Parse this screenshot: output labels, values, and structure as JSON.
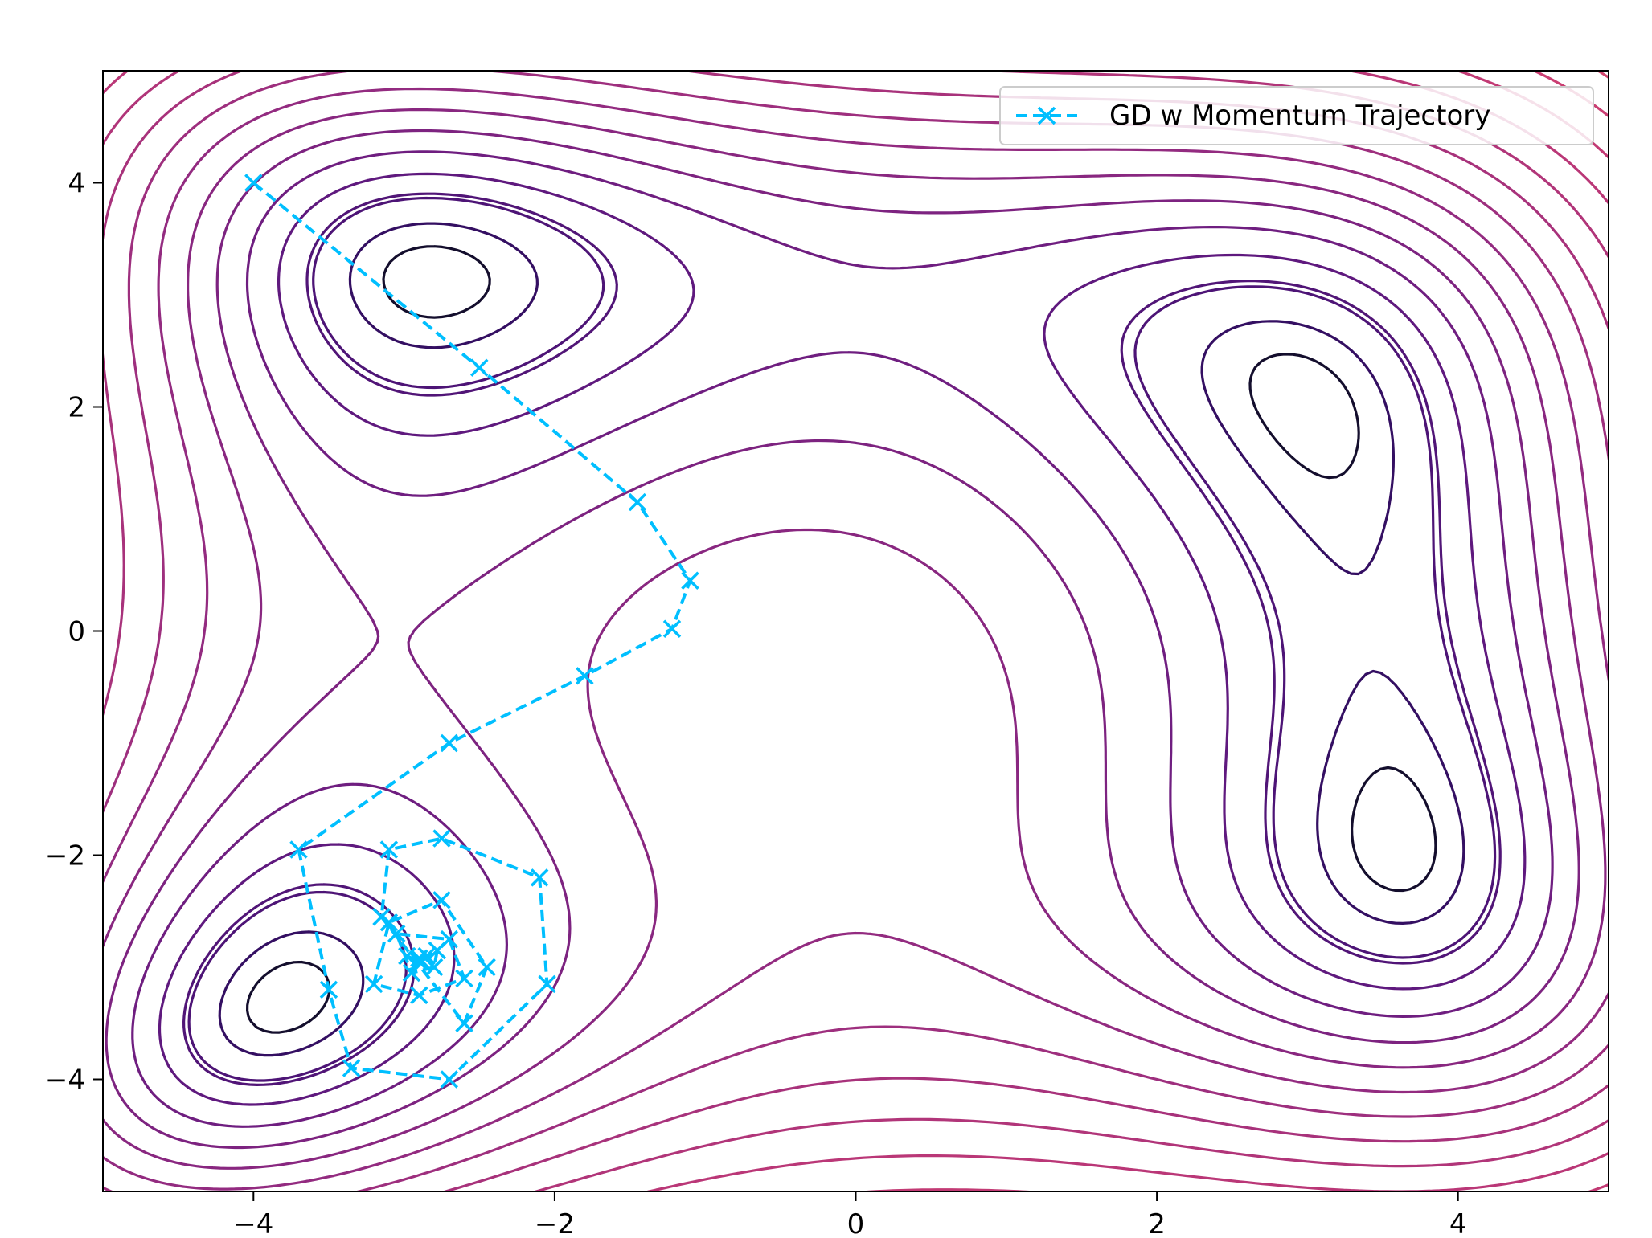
{
  "chart_data": {
    "type": "contour",
    "title": "",
    "xlabel": "",
    "ylabel": "",
    "xlim": [
      -5,
      5
    ],
    "ylim": [
      -5,
      5
    ],
    "xticks": [
      -4,
      -2,
      0,
      2,
      4
    ],
    "yticks": [
      -4,
      -2,
      0,
      2,
      4
    ],
    "xtick_labels": [
      "−4",
      "−2",
      "0",
      "2",
      "4"
    ],
    "ytick_labels": [
      "−4",
      "−2",
      "0",
      "2",
      "4"
    ],
    "grid": false,
    "legend_position": "upper right",
    "contour": {
      "function": "Himmelblau-like surface",
      "colormap": "magma (dark inner levels to orange outer levels)",
      "minima_shown": [
        [
          -2.9,
          2.75
        ],
        [
          2.75,
          2.75
        ],
        [
          -2.9,
          -2.9
        ],
        [
          2.75,
          -2.9
        ]
      ],
      "center_peak": [
        0.15,
        0.15
      ]
    },
    "series": [
      {
        "name": "GD w Momentum Trajectory",
        "color": "#00bfff",
        "linestyle": "dashed",
        "marker": "x",
        "x": [
          -4.0,
          -2.5,
          -1.45,
          -1.1,
          -1.22,
          -1.8,
          -2.7,
          -3.7,
          -3.5,
          -3.35,
          -2.7,
          -2.05,
          -2.1,
          -2.75,
          -3.1,
          -3.15,
          -2.6,
          -2.45,
          -2.75,
          -3.1,
          -3.2,
          -2.9,
          -2.6,
          -2.7,
          -3.05,
          -2.95,
          -2.8,
          -2.78,
          -2.9,
          -2.98,
          -2.88,
          -2.85,
          -2.9
        ],
        "y": [
          4.0,
          2.35,
          1.15,
          0.45,
          0.02,
          -0.4,
          -1.0,
          -1.95,
          -3.2,
          -3.9,
          -4.0,
          -3.15,
          -2.2,
          -1.85,
          -1.95,
          -2.55,
          -3.5,
          -3.0,
          -2.4,
          -2.6,
          -3.15,
          -3.25,
          -3.1,
          -2.75,
          -2.7,
          -3.05,
          -3.0,
          -2.85,
          -2.95,
          -2.9,
          -2.95,
          -2.9,
          -2.92
        ]
      }
    ]
  },
  "legend": {
    "label": "GD w Momentum Trajectory"
  }
}
